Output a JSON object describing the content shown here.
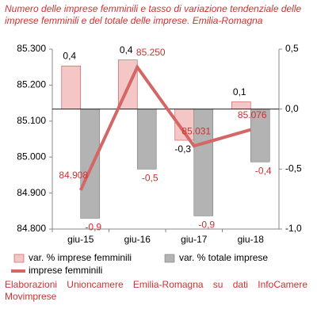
{
  "chart_data": {
    "type": "bar",
    "title": "Numero delle imprese femminili e tasso di variazione tendenziale delle imprese femminili e del totale delle imprese. Emilia-Romagna",
    "categories": [
      "giu-15",
      "giu-16",
      "giu-17",
      "giu-18"
    ],
    "series": [
      {
        "name": "var. % imprese femminili",
        "type": "bar",
        "axis": "y2",
        "color": "#f4c6c6",
        "stroke": "#c05050",
        "values": [
          0.36,
          0.41,
          -0.26,
          0.06
        ],
        "value_labels": [
          "0,4",
          "0,4",
          "-0,3",
          "0,1"
        ]
      },
      {
        "name": "var. % totale imprese",
        "type": "bar",
        "axis": "y2",
        "color": "#b3b3b3",
        "stroke": "#7a7a7a",
        "values": [
          -0.91,
          -0.5,
          -0.89,
          -0.44
        ],
        "value_labels": [
          "-0,9",
          "-0,5",
          "-0,9",
          "-0,4"
        ]
      },
      {
        "name": "imprese femminili",
        "type": "line",
        "color": "#d46666",
        "values": [
          84908,
          85250,
          85031,
          85076
        ],
        "value_labels": [
          "84.908",
          "85.250",
          "85.031",
          "85.076"
        ]
      }
    ],
    "ylim": [
      84800,
      85300
    ],
    "yticks": [
      {
        "value": 84800,
        "label": "84.800"
      },
      {
        "value": 84900,
        "label": "84.900"
      },
      {
        "value": 85000,
        "label": "85.000"
      },
      {
        "value": 85100,
        "label": "85.100"
      },
      {
        "value": 85200,
        "label": "85.200"
      },
      {
        "value": 85300,
        "label": "85.300"
      }
    ],
    "y2lim": [
      -1.0,
      0.5
    ],
    "y2ticks": [
      {
        "value": -1.0,
        "label": "-1,0"
      },
      {
        "value": -0.5,
        "label": "-0,5"
      },
      {
        "value": 0,
        "label": "0,0"
      },
      {
        "value": 0.5,
        "label": "0,5"
      }
    ]
  },
  "footer": "Elaborazioni Unioncamere Emilia-Romagna su dati InfoCamere Movimprese"
}
